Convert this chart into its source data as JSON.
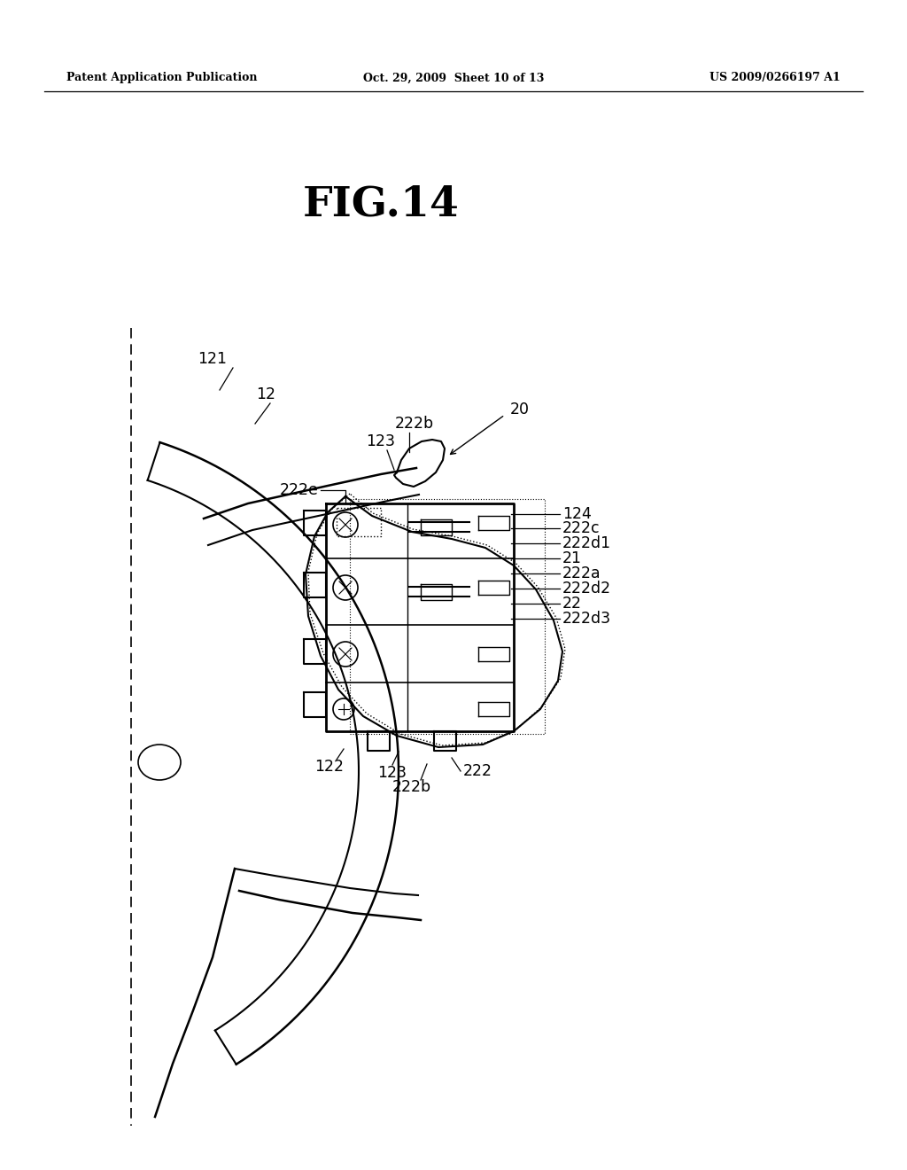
{
  "bg_color": "#ffffff",
  "header_left": "Patent Application Publication",
  "header_center": "Oct. 29, 2009  Sheet 10 of 13",
  "header_right": "US 2009/0266197 A1",
  "fig_label": "FIG.14",
  "lc": "#000000"
}
